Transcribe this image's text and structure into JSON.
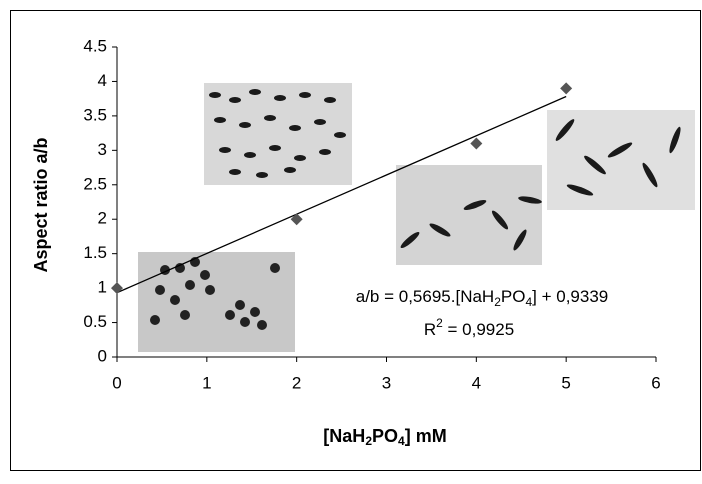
{
  "chart_data": {
    "type": "scatter",
    "xlabel": [
      "[NaH",
      "2",
      "PO",
      "4",
      "] mM"
    ],
    "ylabel": "Aspect ratio a/b",
    "x": [
      0,
      2,
      4,
      5
    ],
    "series": [
      {
        "values": [
          1,
          2,
          3.1,
          3.9
        ],
        "color": "#555555"
      }
    ],
    "trendline": {
      "slope": 0.5695,
      "intercept": 0.9339,
      "equation": [
        "a/b = 0,5695.[NaH",
        "2",
        "PO",
        "4",
        "] + 0,9339"
      ],
      "r2": [
        "R",
        "2",
        " = 0,9925"
      ]
    },
    "xlim": [
      0,
      6
    ],
    "xticks": [
      0,
      1,
      2,
      3,
      4,
      5,
      6
    ],
    "ylim": [
      0,
      4.5
    ],
    "yticks": [
      0,
      0.5,
      1,
      1.5,
      2,
      2.5,
      3,
      3.5,
      4,
      4.5
    ]
  }
}
